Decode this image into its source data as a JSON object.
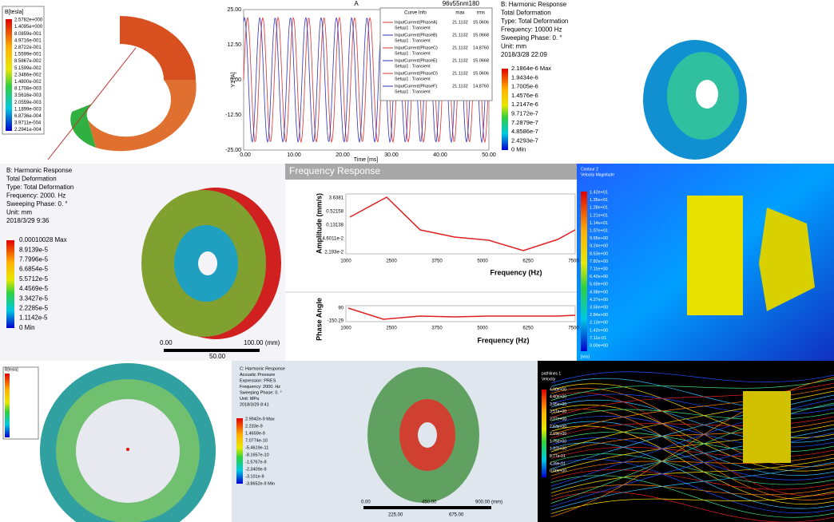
{
  "magnet_plot": {
    "title": "B[tesla]",
    "legend": [
      "2.5782e+000",
      "1.4095e+000",
      "8.0859e-001",
      "4.9716e-001",
      "2.8722e-001",
      "1.5599e-001",
      "8.5867e-002",
      "5.1599e-002",
      "2.3466e-002",
      "1.4800e-002",
      "8.1708e-003",
      "3.5616e-003",
      "2.0559e-003",
      "1.1899e-003",
      "6.8736e-004",
      "3.9711e-004",
      "2.2941e-004"
    ]
  },
  "current_plot": {
    "title": "A",
    "file": "96v55nm180",
    "ylabel": "Y1 [A]",
    "xlabel": "Time [ms]",
    "yticks": [
      "25.00",
      "12.50",
      "0.00",
      "-12.50",
      "-25.00"
    ],
    "xticks": [
      "0.00",
      "10.00",
      "20.00",
      "30.00",
      "40.00",
      "50.00"
    ],
    "legend_header": [
      "Curve Info",
      "max",
      "rms"
    ],
    "legend_rows": [
      [
        "InputCurrent(PhaseA)",
        "Setup1 : Transient",
        "21.1132",
        "15.0606"
      ],
      [
        "InputCurrent(PhaseB)",
        "Setup1 : Transient",
        "21.1132",
        "15.0668"
      ],
      [
        "InputCurrent(PhaseC)",
        "Setup1 : Transient",
        "21.1132",
        "14.8760"
      ],
      [
        "InputCurrent(PhaseE)",
        "Setup1 : Transient",
        "21.1132",
        "15.0668"
      ],
      [
        "InputCurrent(PhaseD)",
        "Setup1 : Transient",
        "21.1132",
        "15.0606"
      ],
      [
        "InputCurrent(PhaseF)",
        "Setup1 : Transient",
        "21.1132",
        "14.8760"
      ]
    ]
  },
  "harmonic_top": {
    "lines": [
      "B: Harmonic Response",
      "Total Deformation",
      "Type: Total Deformation",
      "Frequency: 10000 Hz",
      "Sweeping Phase: 0. °",
      "Unit: mm",
      "2018/3/28 22:09"
    ],
    "legend": [
      "2.1864e-6 Max",
      "1.9434e-6",
      "1.7005e-6",
      "1.4576e-6",
      "1.2147e-6",
      "9.7172e-7",
      "7.2879e-7",
      "4.8586e-7",
      "2.4293e-7",
      "0 Min"
    ]
  },
  "harmonic_mid": {
    "lines": [
      "B: Harmonic Response",
      "Total Deformation",
      "Type: Total Deformation",
      "Frequency: 2000. Hz",
      "Sweeping Phase: 0. °",
      "Unit: mm",
      "2018/3/29 9:36"
    ],
    "legend": [
      "0.00010028 Max",
      "8.9139e-5",
      "7.7996e-5",
      "6.6854e-5",
      "5.5712e-5",
      "4.4569e-5",
      "3.3427e-5",
      "2.2285e-5",
      "1.1142e-5",
      "0 Min"
    ],
    "scale": [
      "0.00",
      "100.00 (mm)",
      "50.00"
    ]
  },
  "frequency_response": {
    "title": "Frequency Response",
    "amplitude_label": "Amplitude (mm/s)",
    "amplitude_ticks": [
      "3.6381",
      "0.52158",
      "0.13138",
      "4.6011e-2",
      "2.193e-2"
    ],
    "xticks": [
      "1000",
      "2500",
      "3750",
      "5000",
      "6250",
      "7500"
    ],
    "xlabel": "Frequency (Hz)",
    "phase_label": "Phase Angle",
    "phase_ticks": [
      "90",
      "-150.29"
    ]
  },
  "velocity_plot": {
    "lines": [
      "Contour 2",
      "Velocity Magnitude"
    ],
    "legend": [
      "1.42e+01",
      "1.35e+01",
      "1.28e+01",
      "1.21e+01",
      "1.14e+01",
      "1.07e+01",
      "9.95e+00",
      "9.24e+00",
      "8.53e+00",
      "7.82e+00",
      "7.11e+00",
      "6.40e+00",
      "5.69e+00",
      "4.98e+00",
      "4.27e+00",
      "3.56e+00",
      "2.84e+00",
      "2.13e+00",
      "1.42e+00",
      "7.11e-01",
      "0.00e+00"
    ],
    "unit": "[m/s]"
  },
  "ring_plot": {
    "title": "B[tesla]"
  },
  "harmonic_bottom": {
    "lines": [
      "C: Harmonic Response",
      "Acoustic Pressure",
      "Expression: PRES",
      "Frequency: 2000. Hz",
      "Sweeping Phase: 0. °",
      "Unit: MPa",
      "2018/3/29 8:41"
    ],
    "legend": [
      "2.9942e-9 Max",
      "2.233e-9",
      "1.4659e-9",
      "7.0774e-10",
      "-5.4619e-11",
      "-8.1657e-10",
      "-1.5767e-9",
      "-2.3409e-9",
      "-3.101e-9",
      "-3.8652e-9 Min"
    ],
    "scale": [
      "0.00",
      "450.00",
      "900.00 (mm)",
      "225.00",
      "675.00"
    ]
  },
  "pathline_plot": {
    "lines": [
      "pathlines 1",
      "Velocity"
    ],
    "legend": [
      "4.90e+00",
      "4.40e+00",
      "3.95e+00",
      "3.51e+00",
      "3.07e+00",
      "2.63e+00",
      "2.19e+00",
      "1.75e+00",
      "1.32e+00",
      "8.77e-01",
      "4.39e-01",
      "0.00e+00"
    ]
  }
}
